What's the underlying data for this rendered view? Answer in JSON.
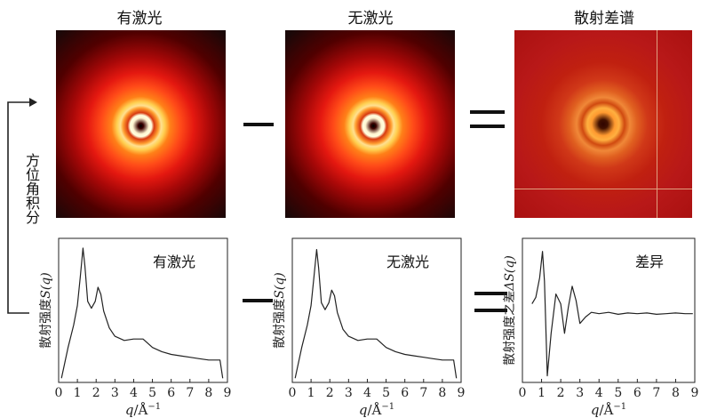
{
  "figure": {
    "top_titles": {
      "with_laser": "有激光",
      "without_laser": "无激光",
      "difference": "散射差谱"
    },
    "side_label": "方位角积分",
    "operators": {
      "minus": "−",
      "equals": "="
    }
  },
  "chart_data": [
    {
      "type": "line",
      "name": "with-laser-profile",
      "title": "有激光",
      "xlabel_italic": "q",
      "xlabel_rest": "/Å",
      "xlabel_exp": "−1",
      "ylabel_prefix": "散射强度",
      "ylabel_var": "S(q)",
      "xlim": [
        0,
        9
      ],
      "x_ticks": [
        "0",
        "1",
        "2",
        "3",
        "4",
        "5",
        "6",
        "7",
        "8",
        "9"
      ],
      "x": [
        0.15,
        0.5,
        0.8,
        1.0,
        1.15,
        1.3,
        1.4,
        1.55,
        1.75,
        1.95,
        2.1,
        2.25,
        2.4,
        2.7,
        3.0,
        3.5,
        4.0,
        4.5,
        5.0,
        5.5,
        6.0,
        6.5,
        7.0,
        7.5,
        8.0,
        8.6,
        8.75
      ],
      "y": [
        0.0,
        0.22,
        0.38,
        0.52,
        0.72,
        0.93,
        0.8,
        0.55,
        0.5,
        0.55,
        0.65,
        0.6,
        0.48,
        0.36,
        0.3,
        0.27,
        0.28,
        0.28,
        0.22,
        0.19,
        0.17,
        0.16,
        0.15,
        0.14,
        0.13,
        0.13,
        0.0
      ]
    },
    {
      "type": "line",
      "name": "without-laser-profile",
      "title": "无激光",
      "xlabel_italic": "q",
      "xlabel_rest": "/Å",
      "xlabel_exp": "−1",
      "ylabel_prefix": "散射强度",
      "ylabel_var": "S(q)",
      "xlim": [
        0,
        9
      ],
      "x_ticks": [
        "0",
        "1",
        "2",
        "3",
        "4",
        "5",
        "6",
        "7",
        "8",
        "9"
      ],
      "x": [
        0.15,
        0.5,
        0.8,
        1.0,
        1.15,
        1.3,
        1.4,
        1.55,
        1.75,
        1.95,
        2.1,
        2.25,
        2.4,
        2.7,
        3.0,
        3.5,
        4.0,
        4.5,
        5.0,
        5.5,
        6.0,
        6.5,
        7.0,
        7.5,
        8.0,
        8.6,
        8.75
      ],
      "y": [
        0.0,
        0.22,
        0.38,
        0.52,
        0.72,
        0.92,
        0.79,
        0.54,
        0.49,
        0.54,
        0.63,
        0.59,
        0.47,
        0.35,
        0.3,
        0.27,
        0.28,
        0.28,
        0.22,
        0.19,
        0.17,
        0.16,
        0.15,
        0.14,
        0.13,
        0.13,
        0.0
      ]
    },
    {
      "type": "line",
      "name": "difference-profile",
      "title": "差异",
      "xlabel_italic": "q",
      "xlabel_rest": "/Å",
      "xlabel_exp": "−1",
      "ylabel_prefix": "散射强度之差",
      "ylabel_var": "ΔS(q)",
      "xlim": [
        0,
        9
      ],
      "x_ticks": [
        "0",
        "1",
        "2",
        "3",
        "4",
        "5",
        "6",
        "7",
        "8",
        "9"
      ],
      "x": [
        0.5,
        0.7,
        0.9,
        1.05,
        1.15,
        1.3,
        1.5,
        1.75,
        2.0,
        2.2,
        2.4,
        2.6,
        2.8,
        3.0,
        3.3,
        3.6,
        4.0,
        4.5,
        5.0,
        5.5,
        6.0,
        6.5,
        7.0,
        7.5,
        8.0,
        8.5,
        8.9
      ],
      "y": [
        0.15,
        0.25,
        0.55,
        0.95,
        0.5,
        -0.95,
        -0.3,
        0.3,
        0.15,
        -0.3,
        0.1,
        0.42,
        0.2,
        -0.15,
        -0.05,
        0.02,
        0.0,
        0.02,
        -0.01,
        0.01,
        0.0,
        0.01,
        -0.01,
        0.0,
        0.01,
        0.0,
        0.0
      ]
    }
  ]
}
